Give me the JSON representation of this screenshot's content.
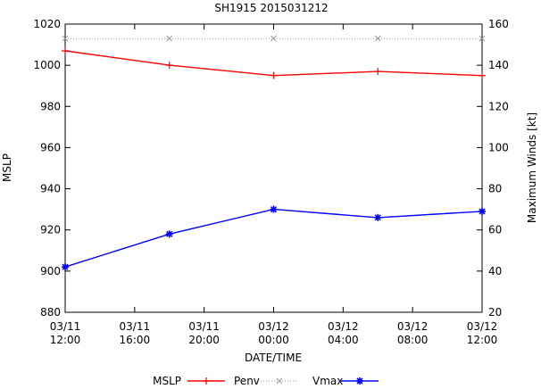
{
  "chart_data": {
    "type": "line",
    "title": "SH1915 2015031212",
    "xlabel": "DATE/TIME",
    "ylabel": "MSLP",
    "y2label": "Maximum Winds [kt]",
    "xlim": [
      0,
      24
    ],
    "ylim": [
      880,
      1020
    ],
    "y2lim": [
      20,
      160
    ],
    "grid": false,
    "legend_position": "bottom",
    "x_tick_positions": [
      0,
      4,
      8,
      12,
      16,
      20,
      24
    ],
    "x_tick_labels": [
      [
        "03/11",
        "12:00"
      ],
      [
        "03/11",
        "16:00"
      ],
      [
        "03/11",
        "20:00"
      ],
      [
        "03/12",
        "00:00"
      ],
      [
        "03/12",
        "04:00"
      ],
      [
        "03/12",
        "08:00"
      ],
      [
        "03/12",
        "12:00"
      ]
    ],
    "y_ticks": [
      880,
      900,
      920,
      940,
      960,
      980,
      1000,
      1020
    ],
    "y2_ticks": [
      20,
      40,
      60,
      80,
      100,
      120,
      140,
      160
    ],
    "legend_title": "MSLP",
    "series": [
      {
        "name": "Penv",
        "axis": "left",
        "color": "#ff0000",
        "marker": "plus",
        "style": "solid",
        "x": [
          0,
          6,
          12,
          18,
          24
        ],
        "values": [
          1007,
          1000,
          995,
          997,
          995
        ]
      },
      {
        "name": "",
        "axis": "left",
        "color": "#999999",
        "marker": "cross",
        "style": "dotted",
        "x": [
          0,
          6,
          12,
          18,
          24
        ],
        "values": [
          1013,
          1013,
          1013,
          1013,
          1013
        ]
      },
      {
        "name": "Vmax",
        "axis": "right",
        "color": "#0000ff",
        "marker": "star",
        "style": "solid",
        "x": [
          0,
          6,
          12,
          18,
          24
        ],
        "values": [
          42,
          58,
          70,
          66,
          69
        ]
      }
    ]
  }
}
